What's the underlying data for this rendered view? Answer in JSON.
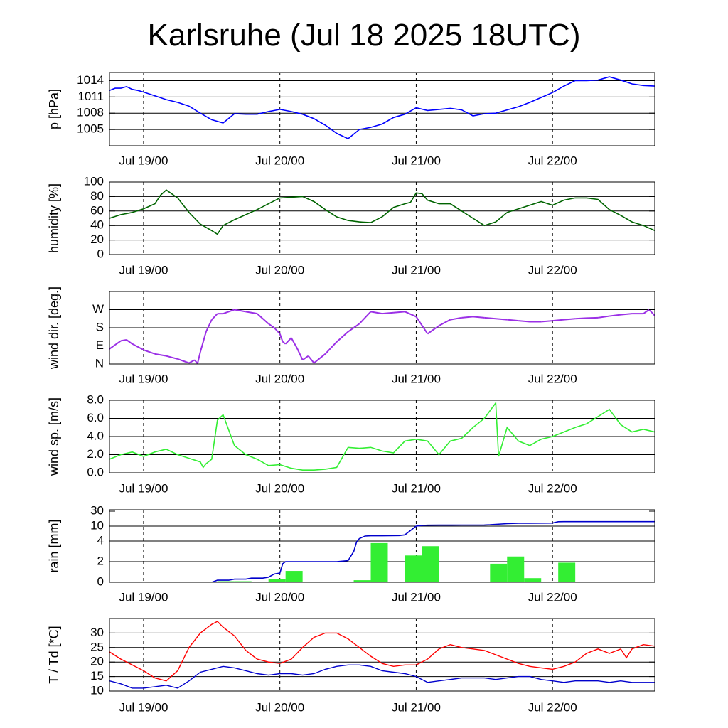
{
  "title": "Karlsruhe (Jul 18 2025 18UTC)",
  "x_axis": {
    "start": "Jul 18 18UTC",
    "end": "Jul 22 18UTC",
    "unit": "hours",
    "ticks": [
      {
        "label": "Jul 19/00",
        "hour": 6
      },
      {
        "label": "Jul 20/00",
        "hour": 30
      },
      {
        "label": "Jul 21/00",
        "hour": 54
      },
      {
        "label": "Jul 22/00",
        "hour": 78
      }
    ],
    "range_hours": [
      0,
      96
    ]
  },
  "chart_data": [
    {
      "type": "line",
      "panel": "pressure",
      "ylabel": "p [hPa]",
      "ylim": [
        1002,
        1015.5
      ],
      "yticks": [
        1005,
        1008,
        1011,
        1014
      ],
      "grid_y": [
        1005,
        1008,
        1011,
        1014
      ],
      "colors": {
        "line": "#0000ff"
      },
      "x": [
        0,
        1,
        2,
        3,
        4,
        5,
        6,
        8,
        10,
        12,
        14,
        16,
        18,
        20,
        22,
        24,
        26,
        28,
        30,
        32,
        34,
        36,
        38,
        40,
        42,
        44,
        46,
        48,
        50,
        52,
        54,
        56,
        58,
        60,
        62,
        64,
        66,
        68,
        70,
        72,
        74,
        76,
        78,
        80,
        82,
        84,
        86,
        88,
        90,
        92,
        94,
        96
      ],
      "values": [
        1012.2,
        1012.6,
        1012.6,
        1012.9,
        1012.4,
        1012.2,
        1011.9,
        1011.2,
        1010.5,
        1010.0,
        1009.3,
        1008.0,
        1006.8,
        1006.2,
        1007.9,
        1007.8,
        1007.8,
        1008.3,
        1008.7,
        1008.3,
        1007.8,
        1007.0,
        1005.8,
        1004.3,
        1003.3,
        1005.0,
        1005.4,
        1006.0,
        1007.2,
        1007.8,
        1009.0,
        1008.5,
        1008.7,
        1008.9,
        1008.6,
        1007.5,
        1007.9,
        1008.0,
        1008.6,
        1009.2,
        1010.0,
        1010.9,
        1011.8,
        1013.0,
        1014.0,
        1014.0,
        1014.1,
        1014.7,
        1014.1,
        1013.4,
        1013.1,
        1013.0
      ]
    },
    {
      "type": "line",
      "panel": "humidity",
      "ylabel": "humidity [%]",
      "ylim": [
        0,
        100
      ],
      "yticks": [
        0,
        20,
        40,
        60,
        80,
        100
      ],
      "grid_y": [
        20,
        40,
        60,
        80
      ],
      "colors": {
        "line": "#006400"
      },
      "x": [
        0,
        2,
        4,
        6,
        8,
        9,
        10,
        12,
        14,
        16,
        18,
        19,
        20,
        22,
        24,
        26,
        28,
        30,
        32,
        34,
        36,
        38,
        40,
        42,
        44,
        46,
        48,
        50,
        52,
        53,
        54,
        55,
        56,
        58,
        60,
        62,
        64,
        66,
        68,
        70,
        72,
        74,
        76,
        78,
        80,
        82,
        84,
        86,
        88,
        90,
        92,
        94,
        96
      ],
      "values": [
        50,
        55,
        58,
        63,
        70,
        82,
        89,
        78,
        58,
        42,
        33,
        28,
        40,
        48,
        55,
        62,
        70,
        78,
        79,
        80,
        73,
        62,
        52,
        47,
        45,
        44,
        52,
        65,
        70,
        72,
        85,
        84,
        75,
        70,
        70,
        60,
        50,
        40,
        45,
        58,
        63,
        68,
        73,
        68,
        75,
        78,
        78,
        76,
        62,
        54,
        45,
        40,
        33
      ]
    },
    {
      "type": "scatter",
      "panel": "wind_direction",
      "ylabel": "wind dir. [deg.]",
      "ylim": [
        0,
        360
      ],
      "yticks": [
        {
          "value": 0,
          "label": "N"
        },
        {
          "value": 90,
          "label": "E"
        },
        {
          "value": 180,
          "label": "S"
        },
        {
          "value": 270,
          "label": "W"
        }
      ],
      "grid_y": [
        90,
        180,
        270
      ],
      "colors": {
        "line": "#9b30e6"
      },
      "x": [
        0,
        1,
        2,
        3,
        4,
        6,
        8,
        10,
        12,
        13,
        14,
        15,
        15.5,
        16,
        17,
        18,
        19,
        20,
        22,
        24,
        26,
        28,
        29,
        30,
        30.5,
        31,
        32,
        33,
        34,
        35,
        36,
        38,
        40,
        42,
        44,
        46,
        48,
        50,
        52,
        54,
        56,
        58,
        60,
        62,
        64,
        66,
        68,
        70,
        72,
        74,
        76,
        78,
        80,
        82,
        84,
        86,
        88,
        90,
        92,
        94,
        95,
        96
      ],
      "values": [
        75,
        95,
        115,
        120,
        100,
        70,
        50,
        40,
        25,
        15,
        5,
        20,
        2,
        60,
        160,
        220,
        250,
        250,
        270,
        260,
        250,
        200,
        180,
        150,
        110,
        100,
        130,
        80,
        20,
        40,
        5,
        50,
        110,
        160,
        200,
        260,
        250,
        255,
        260,
        235,
        150,
        190,
        220,
        230,
        235,
        230,
        225,
        220,
        215,
        210,
        210,
        215,
        220,
        225,
        228,
        230,
        238,
        245,
        250,
        250,
        270,
        240
      ]
    },
    {
      "type": "line",
      "panel": "wind_speed",
      "ylabel": "wind sp. [m/s]",
      "ylim": [
        0,
        8
      ],
      "yticks": [
        0,
        2,
        4,
        6,
        8
      ],
      "ytick_labels": [
        "0.0",
        "2.0",
        "4.0",
        "6.0",
        "8.0"
      ],
      "grid_y": [
        2,
        4,
        6
      ],
      "colors": {
        "line": "#33ee33"
      },
      "x": [
        0,
        2,
        4,
        6,
        8,
        10,
        12,
        14,
        16,
        16.5,
        17,
        18,
        19,
        20,
        22,
        24,
        26,
        28,
        30,
        32,
        34,
        36,
        38,
        40,
        42,
        44,
        46,
        48,
        50,
        52,
        54,
        56,
        58,
        60,
        62,
        64,
        66,
        68,
        68.5,
        70,
        72,
        74,
        76,
        78,
        80,
        82,
        84,
        86,
        88,
        90,
        92,
        94,
        96
      ],
      "values": [
        1.5,
        2.0,
        2.3,
        1.8,
        2.3,
        2.6,
        2.0,
        1.6,
        1.2,
        0.6,
        1.0,
        1.5,
        5.8,
        6.4,
        3.0,
        2.0,
        1.5,
        0.8,
        0.9,
        0.5,
        0.3,
        0.3,
        0.4,
        0.6,
        2.8,
        2.7,
        2.8,
        2.4,
        2.2,
        3.5,
        3.7,
        3.5,
        2.0,
        3.5,
        3.8,
        5.0,
        6.0,
        7.7,
        1.8,
        5.0,
        3.5,
        3.0,
        3.7,
        4.0,
        4.5,
        5.0,
        5.4,
        6.2,
        7.0,
        5.3,
        4.5,
        4.8,
        4.5
      ]
    },
    {
      "type": "bar",
      "panel": "rain",
      "ylabel": "rain [mm]",
      "yscale": "piecewise",
      "ytick_labels": [
        "0",
        "2",
        "4",
        "10",
        "30"
      ],
      "yticks": [
        0,
        2,
        4,
        10,
        30
      ],
      "grid_y": [
        2,
        4,
        10
      ],
      "colors": {
        "bars": "#33ee33",
        "line": "#0000cc"
      },
      "bars": {
        "x_start": [
          19,
          22,
          28,
          31,
          43,
          46,
          52,
          55,
          67,
          70,
          73,
          79
        ],
        "width_hours": 3,
        "values": [
          0.1,
          0.1,
          0.3,
          1.1,
          0.2,
          3.8,
          2.6,
          3.5,
          1.8,
          2.5,
          0.4,
          1.9
        ]
      },
      "accumulated": {
        "x": [
          0,
          18,
          19,
          21,
          22,
          24,
          25,
          27,
          28,
          29,
          30,
          30.5,
          31,
          32,
          34,
          36,
          38,
          40,
          42,
          43,
          43.5,
          44,
          45,
          46,
          48,
          51,
          52,
          54,
          55,
          56,
          58,
          60,
          62,
          64,
          66,
          67,
          68,
          70,
          72,
          74,
          76,
          78,
          79,
          80,
          82,
          84,
          86,
          88,
          90,
          92,
          94,
          96
        ],
        "values": [
          0,
          0,
          0.2,
          0.2,
          0.3,
          0.3,
          0.4,
          0.4,
          0.5,
          0.8,
          0.9,
          1.8,
          2.0,
          2.0,
          2.0,
          2.0,
          2.0,
          2.0,
          2.1,
          3.0,
          3.9,
          5.0,
          6.0,
          6.1,
          6.1,
          6.2,
          6.5,
          10.0,
          10.9,
          11.2,
          11.3,
          11.3,
          11.4,
          11.4,
          11.5,
          11.8,
          12.4,
          13.3,
          13.8,
          13.9,
          14.0,
          14.1,
          15.9,
          16.0,
          16.0,
          16.0,
          16.0,
          16.0,
          16.0,
          16.0,
          16.0,
          16.0
        ]
      }
    },
    {
      "type": "line",
      "panel": "temperature",
      "ylabel": "T / Td [*C]",
      "ylim": [
        10,
        35
      ],
      "yticks": [
        10,
        15,
        20,
        25,
        30
      ],
      "grid_y": [
        15,
        20,
        25,
        30
      ],
      "colors": {
        "temperature": "#ff0000",
        "dewpoint": "#0000cc"
      },
      "series": [
        {
          "color": "#ff0000",
          "x": [
            0,
            2,
            4,
            6,
            8,
            10,
            12,
            14,
            16,
            18,
            19,
            20,
            22,
            24,
            26,
            28,
            30,
            32,
            34,
            36,
            38,
            40,
            42,
            44,
            46,
            48,
            50,
            52,
            54,
            56,
            58,
            60,
            62,
            64,
            66,
            68,
            70,
            72,
            74,
            76,
            78,
            80,
            82,
            84,
            86,
            88,
            90,
            91,
            92,
            94,
            96
          ],
          "values": [
            23.5,
            21,
            19,
            17,
            14.5,
            13.5,
            17,
            25,
            30,
            33,
            34,
            32,
            29,
            24,
            21,
            20,
            19.5,
            21,
            25,
            28.5,
            30,
            30,
            28,
            25,
            22,
            19.5,
            18.5,
            19,
            19,
            21,
            24.5,
            26,
            25,
            24.5,
            24,
            22.5,
            21,
            19.5,
            18.5,
            18,
            17.5,
            18.5,
            20,
            23,
            24.5,
            23,
            24.5,
            21.5,
            24.5,
            26,
            25.5
          ]
        },
        {
          "color": "#0000cc",
          "x": [
            0,
            2,
            4,
            6,
            8,
            10,
            12,
            14,
            16,
            18,
            20,
            22,
            24,
            26,
            28,
            30,
            32,
            34,
            36,
            38,
            40,
            42,
            44,
            46,
            48,
            50,
            52,
            54,
            56,
            58,
            60,
            62,
            64,
            66,
            68,
            70,
            72,
            74,
            76,
            78,
            80,
            82,
            84,
            86,
            88,
            90,
            92,
            94,
            96
          ],
          "values": [
            13.5,
            12.5,
            11,
            11,
            11.5,
            12,
            11,
            13.5,
            16.5,
            17.5,
            18.5,
            18,
            17,
            16,
            15.5,
            16,
            16,
            15.5,
            16,
            17.5,
            18.5,
            19,
            19,
            18.5,
            17,
            16.5,
            16,
            15,
            13,
            13.5,
            14,
            14.5,
            14.5,
            14.5,
            14,
            14.5,
            15,
            15,
            14,
            13.5,
            13,
            13.5,
            13.5,
            13.5,
            13,
            13.5,
            13,
            13,
            13
          ]
        }
      ]
    }
  ]
}
